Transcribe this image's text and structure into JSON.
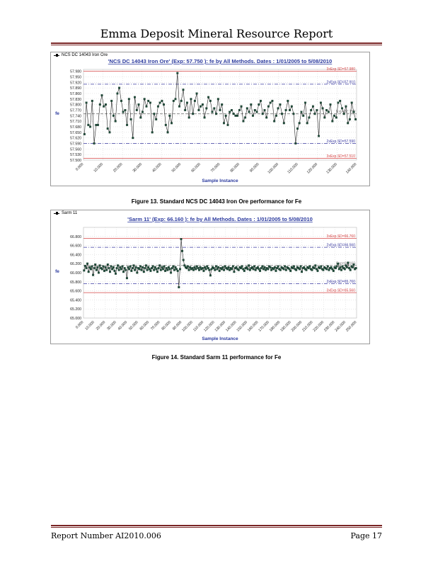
{
  "header": {
    "title": "Emma Deposit Mineral Resource Report"
  },
  "footer": {
    "report_number": "Report Number AI2010.006",
    "page": "Page 17"
  },
  "figures": [
    {
      "caption": "Figure 13. Standard NCS DC 14043 Iron Ore performance for Fe"
    },
    {
      "caption": "Figure 14. Standard Sarm 11 performance for Fe"
    }
  ],
  "chart_data": [
    {
      "type": "line",
      "tab_label": "NCS DC 14043  Iron Ore",
      "title": "'NCS DC 14043  Iron Ore' (Exp: 57.750 ): fe by All Methods. Dates : 1/01/2005 to 5/08/2010",
      "xlabel": "Sample Instance",
      "ylabel": "fe",
      "xlim": [
        0,
        140
      ],
      "ylim": [
        57.5,
        57.99
      ],
      "y_ticks": [
        "57.980",
        "57.950",
        "57.920",
        "57.890",
        "57.860",
        "57.830",
        "57.800",
        "57.770",
        "57.740",
        "57.710",
        "57.680",
        "57.650",
        "57.620",
        "57.590",
        "57.560",
        "57.530",
        "57.500"
      ],
      "x_ticks": [
        "0.000",
        "10.000",
        "20.000",
        "30.000",
        "40.000",
        "50.000",
        "60.000",
        "70.000",
        "80.000",
        "90.000",
        "100.000",
        "110.000",
        "120.000",
        "130.000",
        "140.000"
      ],
      "ref_lines": [
        {
          "label": "3xExp.SD=57.980",
          "value": 57.98,
          "color": "#d64545",
          "style": "solid"
        },
        {
          "label": "2xExp.SD=57.910",
          "value": 57.91,
          "color": "#3a3aa0",
          "style": "dashdot"
        },
        {
          "label": "Exp=57.750",
          "value": 57.75,
          "color": "#777777",
          "style": "dash"
        },
        {
          "label": "2xExp.SD=57.590",
          "value": 57.59,
          "color": "#3a3aa0",
          "style": "dashdot"
        },
        {
          "label": "3xExp.SD=57.510",
          "value": 57.51,
          "color": "#d64545",
          "style": "solid"
        }
      ],
      "series": [
        {
          "values": [
            57.64,
            57.81,
            57.69,
            57.68,
            57.82,
            57.59,
            57.69,
            57.69,
            57.8,
            57.85,
            57.79,
            57.8,
            57.67,
            57.65,
            57.82,
            57.74,
            57.71,
            57.86,
            57.89,
            57.82,
            57.76,
            57.77,
            57.69,
            57.83,
            57.72,
            57.62,
            57.84,
            57.77,
            57.8,
            57.73,
            57.76,
            57.83,
            57.79,
            57.82,
            57.81,
            57.65,
            57.75,
            57.72,
            57.79,
            57.81,
            57.82,
            57.8,
            57.69,
            57.65,
            57.74,
            57.7,
            57.82,
            57.83,
            57.97,
            57.79,
            57.82,
            57.88,
            57.77,
            57.81,
            57.73,
            57.83,
            57.75,
            57.82,
            57.86,
            57.77,
            57.79,
            57.8,
            57.73,
            57.78,
            57.84,
            57.82,
            57.76,
            57.78,
            57.75,
            57.83,
            57.77,
            57.8,
            57.7,
            57.74,
            57.69,
            57.76,
            57.77,
            57.75,
            57.74,
            57.74,
            57.77,
            57.79,
            57.71,
            57.73,
            57.78,
            57.76,
            57.8,
            57.74,
            57.77,
            57.76,
            57.8,
            57.82,
            57.75,
            57.77,
            57.73,
            57.79,
            57.81,
            57.82,
            57.71,
            57.74,
            57.78,
            57.8,
            57.75,
            57.7,
            57.77,
            57.82,
            57.77,
            57.79,
            57.75,
            57.59,
            57.67,
            57.7,
            57.76,
            57.74,
            57.81,
            57.7,
            57.73,
            57.77,
            57.79,
            57.75,
            57.77,
            57.63,
            57.81,
            57.78,
            57.73,
            57.77,
            57.76,
            57.8,
            57.71,
            57.74,
            57.73,
            57.81,
            57.82,
            57.78,
            57.75,
            57.79,
            57.7,
            57.72,
            57.81,
            57.76,
            57.72
          ]
        }
      ]
    },
    {
      "type": "line",
      "tab_label": "Sarm 11",
      "title": "'Sarm 11' (Exp: 66.160 ): fe by All Methods. Dates : 1/01/2005 to 5/08/2010",
      "xlabel": "Sample Instance",
      "ylabel": "fe",
      "xlim": [
        0,
        250
      ],
      "ylim": [
        65.0,
        67.0
      ],
      "y_ticks": [
        "66.800",
        "66.600",
        "66.400",
        "66.200",
        "66.000",
        "65.800",
        "65.600",
        "65.400",
        "65.200",
        "65.000"
      ],
      "x_ticks": [
        "0.000",
        "10.000",
        "20.000",
        "30.000",
        "40.000",
        "50.000",
        "60.000",
        "70.000",
        "80.000",
        "90.000",
        "100.000",
        "110.000",
        "120.000",
        "130.000",
        "140.000",
        "150.000",
        "160.000",
        "170.000",
        "180.000",
        "190.000",
        "200.000",
        "210.000",
        "220.000",
        "230.000",
        "240.000",
        "250.000"
      ],
      "ref_lines": [
        {
          "label": "3xExp.SD=66.760",
          "value": 66.76,
          "color": "#d64545",
          "style": "solid"
        },
        {
          "label": "2xExp.SD=66.560",
          "value": 66.56,
          "color": "#3a3aa0",
          "style": "dashdot"
        },
        {
          "label": "Exp=66.160",
          "value": 66.16,
          "color": "#777777",
          "style": "dash"
        },
        {
          "label": "2xExp.SD=65.760",
          "value": 65.76,
          "color": "#3a3aa0",
          "style": "dashdot"
        },
        {
          "label": "3xExp.SD=65.560",
          "value": 65.56,
          "color": "#d64545",
          "style": "solid"
        }
      ],
      "series": [
        {
          "values": [
            66.05,
            66.15,
            66.1,
            66.2,
            66.02,
            66.12,
            66.08,
            66.14,
            65.95,
            66.1,
            66.18,
            66.06,
            66.12,
            66.0,
            66.16,
            66.1,
            66.08,
            66.14,
            66.04,
            66.12,
            66.06,
            66.18,
            66.1,
            66.02,
            66.14,
            66.08,
            66.12,
            66.04,
            65.98,
            66.1,
            66.16,
            66.06,
            66.12,
            66.08,
            66.14,
            66.02,
            66.1,
            66.06,
            65.88,
            66.12,
            66.08,
            66.14,
            66.04,
            66.1,
            66.16,
            66.06,
            66.12,
            66.0,
            66.1,
            66.08,
            66.14,
            66.06,
            66.12,
            66.02,
            66.1,
            66.16,
            66.06,
            66.12,
            66.08,
            66.04,
            66.1,
            66.14,
            66.06,
            66.12,
            66.08,
            66.02,
            66.1,
            66.16,
            66.06,
            66.12,
            66.08,
            66.14,
            66.04,
            66.1,
            66.06,
            66.12,
            66.08,
            66.0,
            66.1,
            66.14,
            66.06,
            66.12,
            66.08,
            66.04,
            65.68,
            66.08,
            66.74,
            66.48,
            66.28,
            66.16,
            66.12,
            66.1,
            66.14,
            66.06,
            66.12,
            66.08,
            66.1,
            66.06,
            66.12,
            66.08,
            66.14,
            66.1,
            66.06,
            66.12,
            66.08,
            66.1,
            66.04,
            66.12,
            66.08,
            66.14,
            66.1,
            66.06,
            65.94,
            66.08,
            66.12,
            66.1,
            66.06,
            66.14,
            66.08,
            66.12,
            66.04,
            66.1,
            66.08,
            66.12,
            66.06,
            66.14,
            66.1,
            66.08,
            66.12,
            66.06,
            66.1,
            66.08,
            66.14,
            66.02,
            66.1,
            66.12,
            66.08,
            66.06,
            66.12,
            66.1,
            66.14,
            66.08,
            66.04,
            66.1,
            66.12,
            66.08,
            66.16,
            66.06,
            66.1,
            66.12,
            66.08,
            66.14,
            66.06,
            66.1,
            66.12,
            66.08,
            66.04,
            66.1,
            66.14,
            66.08,
            66.12,
            66.06,
            66.1,
            66.08,
            66.14,
            66.12,
            66.06,
            66.1,
            66.08,
            66.12,
            66.04,
            66.1,
            66.14,
            66.08,
            66.06,
            66.12,
            66.1,
            66.08,
            66.14,
            66.06,
            66.12,
            66.1,
            66.08,
            66.04,
            66.12,
            66.1,
            66.14,
            66.08,
            66.06,
            66.12,
            66.1,
            66.08,
            66.14,
            66.02,
            66.1,
            66.12,
            66.08,
            66.06,
            66.12,
            66.1,
            66.14,
            66.08,
            66.06,
            66.12,
            66.1,
            66.16,
            66.08,
            66.04,
            66.12,
            66.1,
            66.14,
            66.08,
            66.06,
            66.12,
            66.1,
            66.08,
            66.14,
            66.06,
            66.1,
            66.12,
            66.08,
            66.04,
            66.12,
            66.1,
            66.14,
            66.2,
            66.08,
            66.12,
            66.06,
            66.14,
            66.1,
            66.08,
            66.16,
            66.12,
            66.22,
            66.1,
            66.06,
            66.14,
            66.12,
            66.18,
            66.08,
            66.1
          ]
        }
      ]
    }
  ]
}
